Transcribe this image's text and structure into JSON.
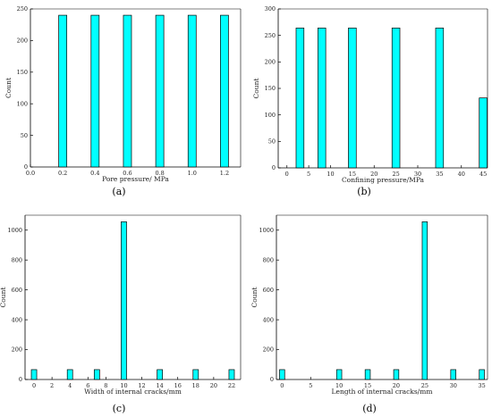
{
  "colors": {
    "bar_fill": "#00ffff",
    "bar_stroke": "#000000",
    "axis": "#000000"
  },
  "chart_data": [
    {
      "type": "bar",
      "panel": "(a)",
      "xlabel": "Pore pressure/ MPa",
      "ylabel": "Count",
      "xlim": [
        0.0,
        1.3
      ],
      "ylim": [
        0,
        250
      ],
      "xticks": [
        0.0,
        0.2,
        0.4,
        0.6,
        0.8,
        1.0,
        1.2
      ],
      "xtick_labels": [
        "0.0",
        "0.2",
        "0.4",
        "0.6",
        "0.8",
        "1.0",
        "1.2"
      ],
      "yticks": [
        0,
        50,
        100,
        150,
        200,
        250
      ],
      "x": [
        0.2,
        0.4,
        0.6,
        0.8,
        1.0,
        1.2
      ],
      "values": [
        240,
        240,
        240,
        240,
        240,
        240
      ],
      "bar_width": 0.05,
      "grid": false
    },
    {
      "type": "bar",
      "panel": "(b)",
      "xlabel": "Confining pressure/MPa",
      "ylabel": "Count",
      "xlim": [
        -2,
        46
      ],
      "ylim": [
        0,
        300
      ],
      "xticks": [
        0,
        5,
        10,
        15,
        20,
        25,
        30,
        35,
        40,
        45
      ],
      "xtick_labels": [
        "0",
        "5",
        "10",
        "15",
        "20",
        "25",
        "30",
        "35",
        "40",
        "45"
      ],
      "yticks": [
        0,
        50,
        100,
        150,
        200,
        250,
        300
      ],
      "x": [
        3,
        8,
        15,
        25,
        35,
        45
      ],
      "values": [
        264,
        264,
        264,
        264,
        264,
        132
      ],
      "bar_width": 1.8,
      "grid": false
    },
    {
      "type": "bar",
      "panel": "(c)",
      "xlabel": "Width of internal cracks/mm",
      "ylabel": "Count",
      "xlim": [
        -1,
        23
      ],
      "ylim": [
        0,
        1100
      ],
      "xticks": [
        0,
        2,
        4,
        6,
        8,
        10,
        12,
        14,
        16,
        18,
        20,
        22
      ],
      "xtick_labels": [
        "0",
        "2",
        "4",
        "6",
        "8",
        "10",
        "12",
        "14",
        "16",
        "18",
        "20",
        "22"
      ],
      "yticks": [
        0,
        200,
        400,
        600,
        800,
        1000
      ],
      "x": [
        0,
        4,
        7,
        10,
        14,
        18,
        22
      ],
      "values": [
        66,
        66,
        66,
        1056,
        66,
        66,
        66
      ],
      "bar_width": 0.6,
      "grid": false
    },
    {
      "type": "bar",
      "panel": "(d)",
      "xlabel": "Length of internal cracks/mm",
      "ylabel": "Count",
      "xlim": [
        -1,
        36
      ],
      "ylim": [
        0,
        1100
      ],
      "xticks": [
        0,
        5,
        10,
        15,
        20,
        25,
        30,
        35
      ],
      "xtick_labels": [
        "0",
        "5",
        "10",
        "15",
        "20",
        "25",
        "30",
        "35"
      ],
      "yticks": [
        0,
        200,
        400,
        600,
        800,
        1000
      ],
      "x": [
        0,
        10,
        15,
        20,
        25,
        30,
        35
      ],
      "values": [
        66,
        66,
        66,
        66,
        1056,
        66,
        66
      ],
      "bar_width": 0.9,
      "grid": false
    }
  ]
}
